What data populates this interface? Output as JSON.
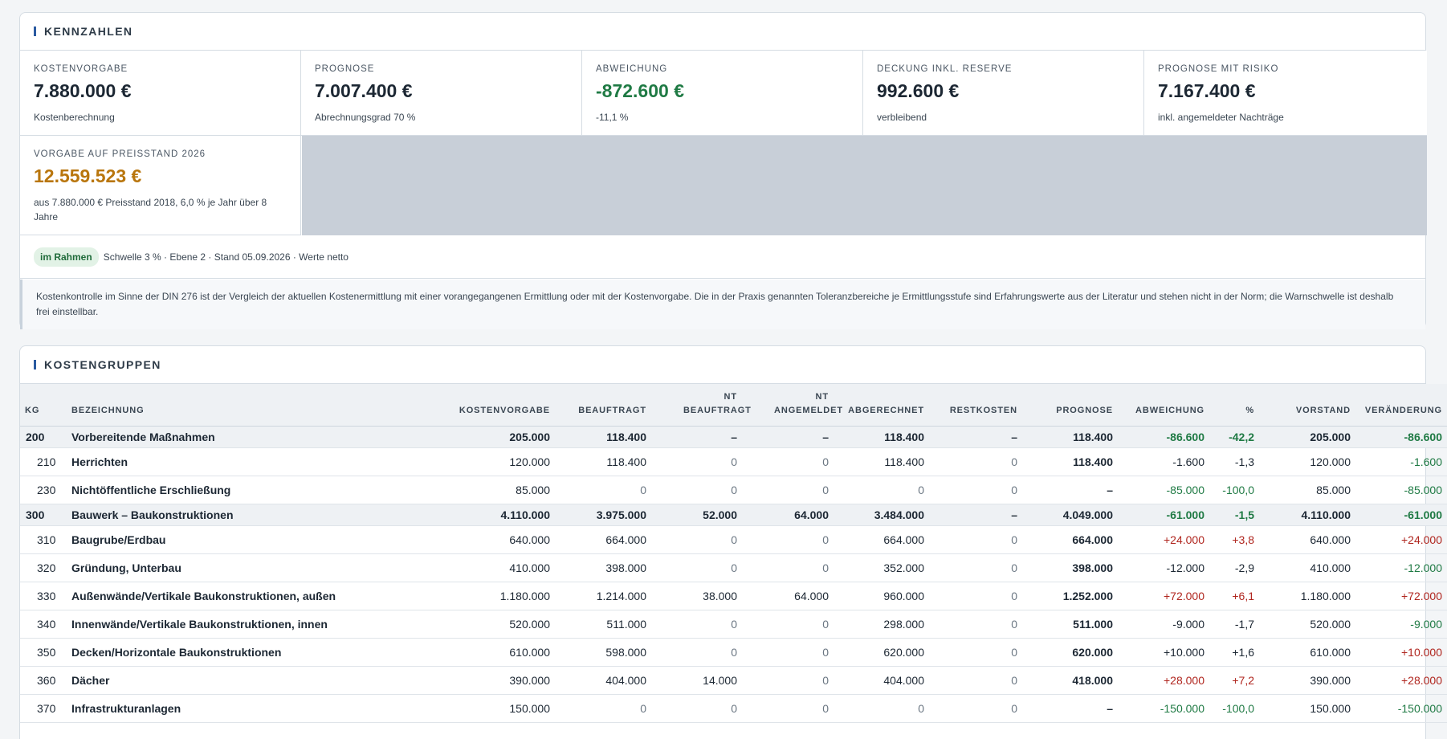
{
  "kennzahlen": {
    "title": "KENNZAHLEN",
    "kpis": [
      {
        "label": "KOSTENVORGABE",
        "value": "7.880.000 €",
        "sub": "Kostenberechnung"
      },
      {
        "label": "PROGNOSE",
        "value": "7.007.400 €",
        "sub": "Abrechnungsgrad 70 %"
      },
      {
        "label": "ABWEICHUNG",
        "value": "-872.600 €",
        "sub": "-11,1 %"
      },
      {
        "label": "DECKUNG INKL. RESERVE",
        "value": "992.600 €",
        "sub": "verbleibend"
      },
      {
        "label": "PROGNOSE MIT RISIKO",
        "value": "7.167.400 €",
        "sub": "inkl. angemeldeter Nachträge"
      },
      {
        "label": "VORGABE AUF PREISSTAND 2026",
        "value": "12.559.523 €",
        "sub": "aus 7.880.000 € Preisstand 2018, 6,0 % je Jahr über 8 Jahre"
      }
    ],
    "status_badge": "im Rahmen",
    "status_text": "Schwelle 3 % · Ebene 2 · Stand 05.09.2026 · Werte netto",
    "note": "Kostenkontrolle im Sinne der DIN 276 ist der Vergleich der aktuellen Kostenermittlung mit einer vorangegangenen Ermittlung oder mit der Kostenvorgabe. Die in der Praxis genannten Toleranzbereiche je Ermittlungsstufe sind Erfahrungswerte aus der Literatur und stehen nicht in der Norm; die Warnschwelle ist deshalb frei einstellbar.",
    "colors": {
      "accent": "#2a5aa0",
      "negative_deviation": "#1f7a44",
      "positive_deviation": "#b0261f",
      "highlight": "#b9760e",
      "badge_bg": "#e2f2e6"
    }
  },
  "kostengruppen": {
    "title": "KOSTENGRUPPEN",
    "columns": [
      "KG",
      "BEZEICHNUNG",
      "KOSTENVORGABE",
      "BEAUFTRAGT",
      "NT BEAUFTRAGT",
      "NT ANGEMELDET",
      "ABGERECHNET",
      "RESTKOSTEN",
      "PROGNOSE",
      "ABWEICHUNG",
      "%",
      "VORSTAND",
      "VERÄNDERUNG"
    ],
    "rows": [
      {
        "kg": "200",
        "name": "Vorbereitende Maßnahmen",
        "kostenvorgabe": "205.000",
        "beauftragt": "118.400",
        "nt_beauftragt": "–",
        "nt_angemeldet": "–",
        "abgerechnet": "118.400",
        "restkosten": "–",
        "prognose": "118.400",
        "abweichung": "-86.600",
        "prozent": "-42,2",
        "vorstand": "205.000",
        "veraenderung": "-86.600"
      },
      {
        "kg": "210",
        "name": "Herrichten",
        "kostenvorgabe": "120.000",
        "beauftragt": "118.400",
        "nt_beauftragt": "0",
        "nt_angemeldet": "0",
        "abgerechnet": "118.400",
        "restkosten": "0",
        "prognose": "118.400",
        "abweichung": "-1.600",
        "prozent": "-1,3",
        "vorstand": "120.000",
        "veraenderung": "-1.600"
      },
      {
        "kg": "230",
        "name": "Nichtöffentliche Erschließung",
        "kostenvorgabe": "85.000",
        "beauftragt": "0",
        "nt_beauftragt": "0",
        "nt_angemeldet": "0",
        "abgerechnet": "0",
        "restkosten": "0",
        "prognose": "–",
        "abweichung": "-85.000",
        "prozent": "-100,0",
        "vorstand": "85.000",
        "veraenderung": "-85.000"
      },
      {
        "kg": "300",
        "name": "Bauwerk – Baukonstruktionen",
        "kostenvorgabe": "4.110.000",
        "beauftragt": "3.975.000",
        "nt_beauftragt": "52.000",
        "nt_angemeldet": "64.000",
        "abgerechnet": "3.484.000",
        "restkosten": "–",
        "prognose": "4.049.000",
        "abweichung": "-61.000",
        "prozent": "-1,5",
        "vorstand": "4.110.000",
        "veraenderung": "-61.000"
      },
      {
        "kg": "310",
        "name": "Baugrube/Erdbau",
        "kostenvorgabe": "640.000",
        "beauftragt": "664.000",
        "nt_beauftragt": "0",
        "nt_angemeldet": "0",
        "abgerechnet": "664.000",
        "restkosten": "0",
        "prognose": "664.000",
        "abweichung": "+24.000",
        "prozent": "+3,8",
        "vorstand": "640.000",
        "veraenderung": "+24.000"
      },
      {
        "kg": "320",
        "name": "Gründung, Unterbau",
        "kostenvorgabe": "410.000",
        "beauftragt": "398.000",
        "nt_beauftragt": "0",
        "nt_angemeldet": "0",
        "abgerechnet": "352.000",
        "restkosten": "0",
        "prognose": "398.000",
        "abweichung": "-12.000",
        "prozent": "-2,9",
        "vorstand": "410.000",
        "veraenderung": "-12.000"
      },
      {
        "kg": "330",
        "name": "Außenwände/Vertikale Baukonstruktionen, außen",
        "kostenvorgabe": "1.180.000",
        "beauftragt": "1.214.000",
        "nt_beauftragt": "38.000",
        "nt_angemeldet": "64.000",
        "abgerechnet": "960.000",
        "restkosten": "0",
        "prognose": "1.252.000",
        "abweichung": "+72.000",
        "prozent": "+6,1",
        "vorstand": "1.180.000",
        "veraenderung": "+72.000"
      },
      {
        "kg": "340",
        "name": "Innenwände/Vertikale Baukonstruktionen, innen",
        "kostenvorgabe": "520.000",
        "beauftragt": "511.000",
        "nt_beauftragt": "0",
        "nt_angemeldet": "0",
        "abgerechnet": "298.000",
        "restkosten": "0",
        "prognose": "511.000",
        "abweichung": "-9.000",
        "prozent": "-1,7",
        "vorstand": "520.000",
        "veraenderung": "-9.000"
      },
      {
        "kg": "350",
        "name": "Decken/Horizontale Baukonstruktionen",
        "kostenvorgabe": "610.000",
        "beauftragt": "598.000",
        "nt_beauftragt": "0",
        "nt_angemeldet": "0",
        "abgerechnet": "620.000",
        "restkosten": "0",
        "prognose": "620.000",
        "abweichung": "+10.000",
        "prozent": "+1,6",
        "vorstand": "610.000",
        "veraenderung": "+10.000"
      },
      {
        "kg": "360",
        "name": "Dächer",
        "kostenvorgabe": "390.000",
        "beauftragt": "404.000",
        "nt_beauftragt": "14.000",
        "nt_angemeldet": "0",
        "abgerechnet": "404.000",
        "restkosten": "0",
        "prognose": "418.000",
        "abweichung": "+28.000",
        "prozent": "+7,2",
        "vorstand": "390.000",
        "veraenderung": "+28.000"
      },
      {
        "kg": "370",
        "name": "Infrastrukturanlagen",
        "kostenvorgabe": "150.000",
        "beauftragt": "0",
        "nt_beauftragt": "0",
        "nt_angemeldet": "0",
        "abgerechnet": "0",
        "restkosten": "0",
        "prognose": "–",
        "abweichung": "-150.000",
        "prozent": "-100,0",
        "vorstand": "150.000",
        "veraenderung": "-150.000"
      }
    ]
  }
}
